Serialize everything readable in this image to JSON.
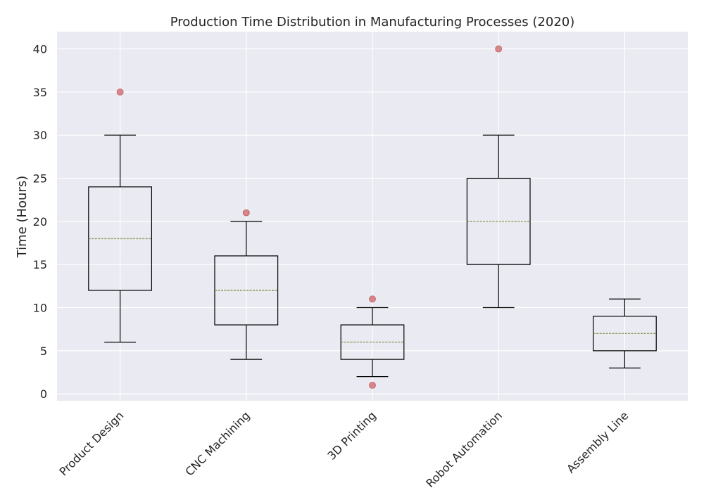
{
  "chart_data": {
    "type": "box",
    "title": "Production Time Distribution in Manufacturing Processes (2020)",
    "xlabel": "",
    "ylabel": "Time (Hours)",
    "ylim": [
      -0.8,
      42
    ],
    "yticks": [
      0,
      5,
      10,
      15,
      20,
      25,
      30,
      35,
      40
    ],
    "grid": true,
    "categories": [
      "Product Design",
      "CNC Machining",
      "3D Printing",
      "Robot Automation",
      "Assembly Line"
    ],
    "boxes": [
      {
        "category": "Product Design",
        "whisker_low": 6,
        "q1": 12,
        "median": 18,
        "q3": 24,
        "whisker_high": 30,
        "outliers": [
          35
        ]
      },
      {
        "category": "CNC Machining",
        "whisker_low": 4,
        "q1": 8,
        "median": 12,
        "q3": 16,
        "whisker_high": 20,
        "outliers": [
          21
        ]
      },
      {
        "category": "3D Printing",
        "whisker_low": 2,
        "q1": 4,
        "median": 6,
        "q3": 8,
        "whisker_high": 10,
        "outliers": [
          1,
          11
        ]
      },
      {
        "category": "Robot Automation",
        "whisker_low": 10,
        "q1": 15,
        "median": 20,
        "q3": 25,
        "whisker_high": 30,
        "outliers": [
          40
        ]
      },
      {
        "category": "Assembly Line",
        "whisker_low": 3,
        "q1": 5,
        "median": 7,
        "q3": 9,
        "whisker_high": 11,
        "outliers": []
      }
    ],
    "colors": {
      "background": "#eaeaf2",
      "grid": "#ffffff",
      "box": "#000000",
      "median": "#8a9a5b",
      "outlier": "#c44e52"
    }
  }
}
